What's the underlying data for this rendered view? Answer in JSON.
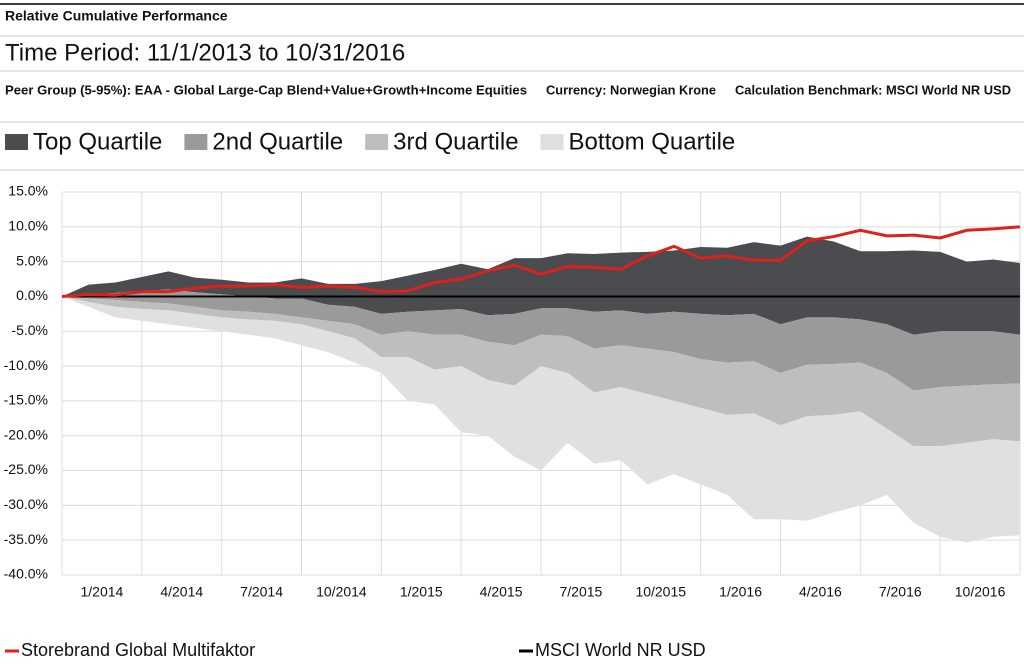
{
  "chart_data": {
    "type": "band",
    "title": "Relative Cumulative Performance",
    "subtitle": "Time Period: 11/1/2013 to 10/31/2016",
    "notes": [
      "Peer Group (5-95%): EAA - Global Large-Cap Blend+Value+Growth+Income Equities",
      "Currency: Norwegian Krone",
      "Calculation Benchmark: MSCI World NR USD"
    ],
    "categories": [
      null,
      null,
      null,
      "1/2014",
      null,
      null,
      "4/2014",
      null,
      null,
      "7/2014",
      null,
      null,
      "10/2014",
      null,
      null,
      "1/2015",
      null,
      null,
      "4/2015",
      null,
      null,
      "7/2015",
      null,
      null,
      "10/2015",
      null,
      null,
      "1/2016",
      null,
      null,
      "4/2016",
      null,
      null,
      "7/2016",
      null,
      null,
      "10/2016"
    ],
    "ylim": [
      -40,
      15
    ],
    "yticks": [
      {
        "value": 15,
        "label": "15.0%"
      },
      {
        "value": 10,
        "label": "10.0%"
      },
      {
        "value": 5,
        "label": "5.0%"
      },
      {
        "value": 0,
        "label": "0.0%"
      },
      {
        "value": -5,
        "label": "-5.0%"
      },
      {
        "value": -10,
        "label": "-10.0%"
      },
      {
        "value": -15,
        "label": "-15.0%"
      },
      {
        "value": -20,
        "label": "-20.0%"
      },
      {
        "value": -25,
        "label": "-25.0%"
      },
      {
        "value": -30,
        "label": "-30.0%"
      },
      {
        "value": -35,
        "label": "-35.0%"
      },
      {
        "value": -40,
        "label": "-40.0%"
      }
    ],
    "grid": true,
    "bands": [
      {
        "name": "Top Quartile",
        "color": "#4b4c50",
        "values": [
          0,
          1.7,
          2.0,
          2.8,
          3.6,
          2.7,
          2.4,
          2.0,
          2.0,
          2.6,
          1.8,
          1.8,
          2.2,
          3.0,
          3.8,
          4.7,
          3.9,
          5.5,
          5.5,
          6.2,
          6.1,
          6.3,
          6.4,
          6.6,
          7.1,
          7.0,
          7.8,
          7.3,
          8.6,
          7.9,
          6.5,
          6.5,
          6.6,
          6.4,
          5.0,
          5.3,
          4.8
        ]
      },
      {
        "name": "2nd Quartile",
        "color": "#9a9a9a",
        "values": [
          0,
          0.3,
          0.5,
          0.8,
          1.0,
          0.6,
          0.3,
          0.0,
          -0.3,
          -0.3,
          -1.2,
          -1.5,
          -2.5,
          -2.2,
          -2.0,
          -1.8,
          -2.7,
          -2.5,
          -1.7,
          -1.7,
          -2.2,
          -2.0,
          -2.5,
          -2.2,
          -2.5,
          -2.7,
          -2.5,
          -4.0,
          -3.0,
          -3.0,
          -3.3,
          -4.0,
          -5.5,
          -5.0,
          -5.0,
          -5.0,
          -5.5
        ]
      },
      {
        "name": "3rd Quartile",
        "color": "#bebebe",
        "values": [
          0,
          -0.3,
          -0.5,
          -0.8,
          -1.0,
          -1.5,
          -2.0,
          -2.2,
          -2.5,
          -3.0,
          -3.5,
          -4.0,
          -5.5,
          -5.0,
          -5.5,
          -5.5,
          -6.5,
          -7.0,
          -5.5,
          -5.7,
          -7.5,
          -7.0,
          -7.5,
          -8.0,
          -9.0,
          -9.5,
          -9.3,
          -11.0,
          -9.8,
          -9.7,
          -9.5,
          -11.0,
          -13.5,
          -13.0,
          -12.8,
          -12.6,
          -12.5
        ]
      },
      {
        "name": "Bottom Quartile",
        "color": "#e0e0e0",
        "values": [
          0,
          -0.8,
          -1.5,
          -1.8,
          -2.0,
          -2.5,
          -3.0,
          -3.3,
          -3.5,
          -4.0,
          -5.0,
          -6.0,
          -8.7,
          -8.7,
          -10.5,
          -10.0,
          -12.0,
          -12.8,
          -10.0,
          -11.0,
          -13.8,
          -13.0,
          -14.0,
          -15.0,
          -16.0,
          -17.0,
          -16.8,
          -18.5,
          -17.2,
          -17.0,
          -16.5,
          -19.0,
          -21.5,
          -21.5,
          -21.0,
          -20.5,
          -20.8
        ],
        "lower": [
          0,
          -1.5,
          -3.0,
          -3.5,
          -4.0,
          -4.5,
          -5.0,
          -5.5,
          -6.0,
          -7.0,
          -8.0,
          -9.5,
          -11.0,
          -15.0,
          -15.5,
          -19.5,
          -20.0,
          -23.0,
          -25.0,
          -21.0,
          -24.0,
          -23.5,
          -27.0,
          -25.5,
          -27.0,
          -28.5,
          -32.0,
          -32.0,
          -32.2,
          -31.0,
          -30.0,
          -28.5,
          -32.5,
          -34.5,
          -35.3,
          -34.5,
          -34.3
        ]
      }
    ],
    "series": [
      {
        "name": "Storebrand Global Multifaktor",
        "color": "#e0201b",
        "values": [
          0,
          0.3,
          0.2,
          0.7,
          0.7,
          1.2,
          1.5,
          1.5,
          1.7,
          1.3,
          1.5,
          1.3,
          0.7,
          0.8,
          2.0,
          2.5,
          3.7,
          4.5,
          3.2,
          4.3,
          4.2,
          3.9,
          5.8,
          7.2,
          5.5,
          5.8,
          5.2,
          5.2,
          8.0,
          8.6,
          9.5,
          8.7,
          8.8,
          8.4,
          9.5,
          9.7,
          10.0
        ]
      },
      {
        "name": "MSCI World NR USD",
        "color": "#000000",
        "values": [
          0,
          0,
          0,
          0,
          0,
          0,
          0,
          0,
          0,
          0,
          0,
          0,
          0,
          0,
          0,
          0,
          0,
          0,
          0,
          0,
          0,
          0,
          0,
          0,
          0,
          0,
          0,
          0,
          0,
          0,
          0,
          0,
          0,
          0,
          0,
          0,
          0
        ]
      }
    ]
  }
}
